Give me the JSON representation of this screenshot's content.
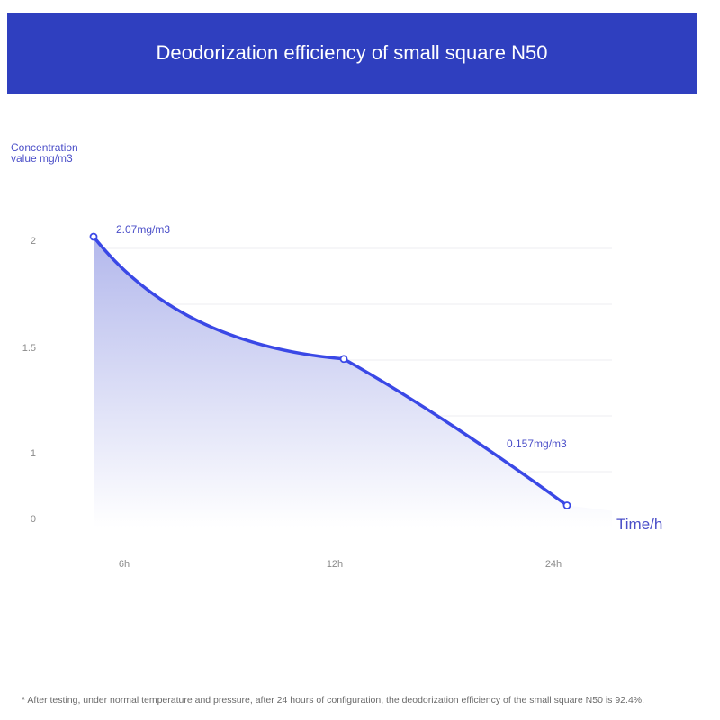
{
  "title": "Deodorization efficiency of small square N50",
  "footnote": "* After testing, under normal temperature and pressure, after 24 hours of configuration, the deodorization efficiency of the small square N50 is 92.4%.",
  "colors": {
    "banner": "#2f3fbf",
    "line": "#3a48e6",
    "area_top": "#b3b8ec",
    "area_bottom": "#ffffff",
    "grid": "#ececf2",
    "label": "#4a4ec8"
  },
  "chart_data": {
    "type": "area",
    "title": "Deodorization efficiency of small square N50",
    "ylabel_lines": [
      "Concentration",
      "value mg/m3"
    ],
    "xlabel": "Time/h",
    "y_ticks": [
      "2",
      "1.5",
      "1",
      "0"
    ],
    "x_ticks": [
      "6h",
      "12h",
      "24h"
    ],
    "series": [
      {
        "points": [
          {
            "x": "6h",
            "y": 2.07
          },
          {
            "x": "12h",
            "y": 1.2
          },
          {
            "x": "24h",
            "y": 0.157
          }
        ]
      }
    ],
    "annotations": [
      {
        "point": 0,
        "text": "2.07mg/m3"
      },
      {
        "point": 2,
        "text": "0.157mg/m3"
      }
    ],
    "grid": true,
    "legend": "none"
  }
}
